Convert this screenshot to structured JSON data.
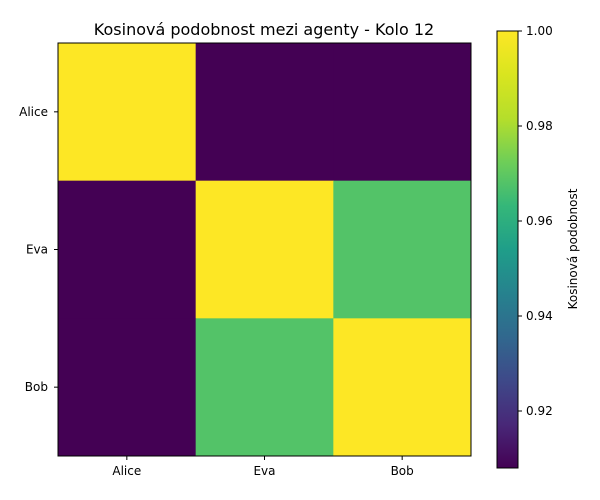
{
  "chart_data": {
    "type": "heatmap",
    "title": "Kosinová podobnost mezi agenty - Kolo 12",
    "x_categories": [
      "Alice",
      "Eva",
      "Bob"
    ],
    "y_categories": [
      "Alice",
      "Eva",
      "Bob"
    ],
    "matrix": [
      [
        1.0,
        0.908,
        0.908
      ],
      [
        0.908,
        1.0,
        0.968
      ],
      [
        0.908,
        0.968,
        1.0
      ]
    ],
    "colormap": "viridis",
    "colorbar": {
      "label": "Kosinová podobnost",
      "range": [
        0.908,
        1.0
      ],
      "ticks": [
        0.92,
        0.94,
        0.96,
        0.98,
        1.0
      ],
      "tick_labels": [
        "0.92",
        "0.94",
        "0.96",
        "0.98",
        "1.00"
      ]
    }
  }
}
